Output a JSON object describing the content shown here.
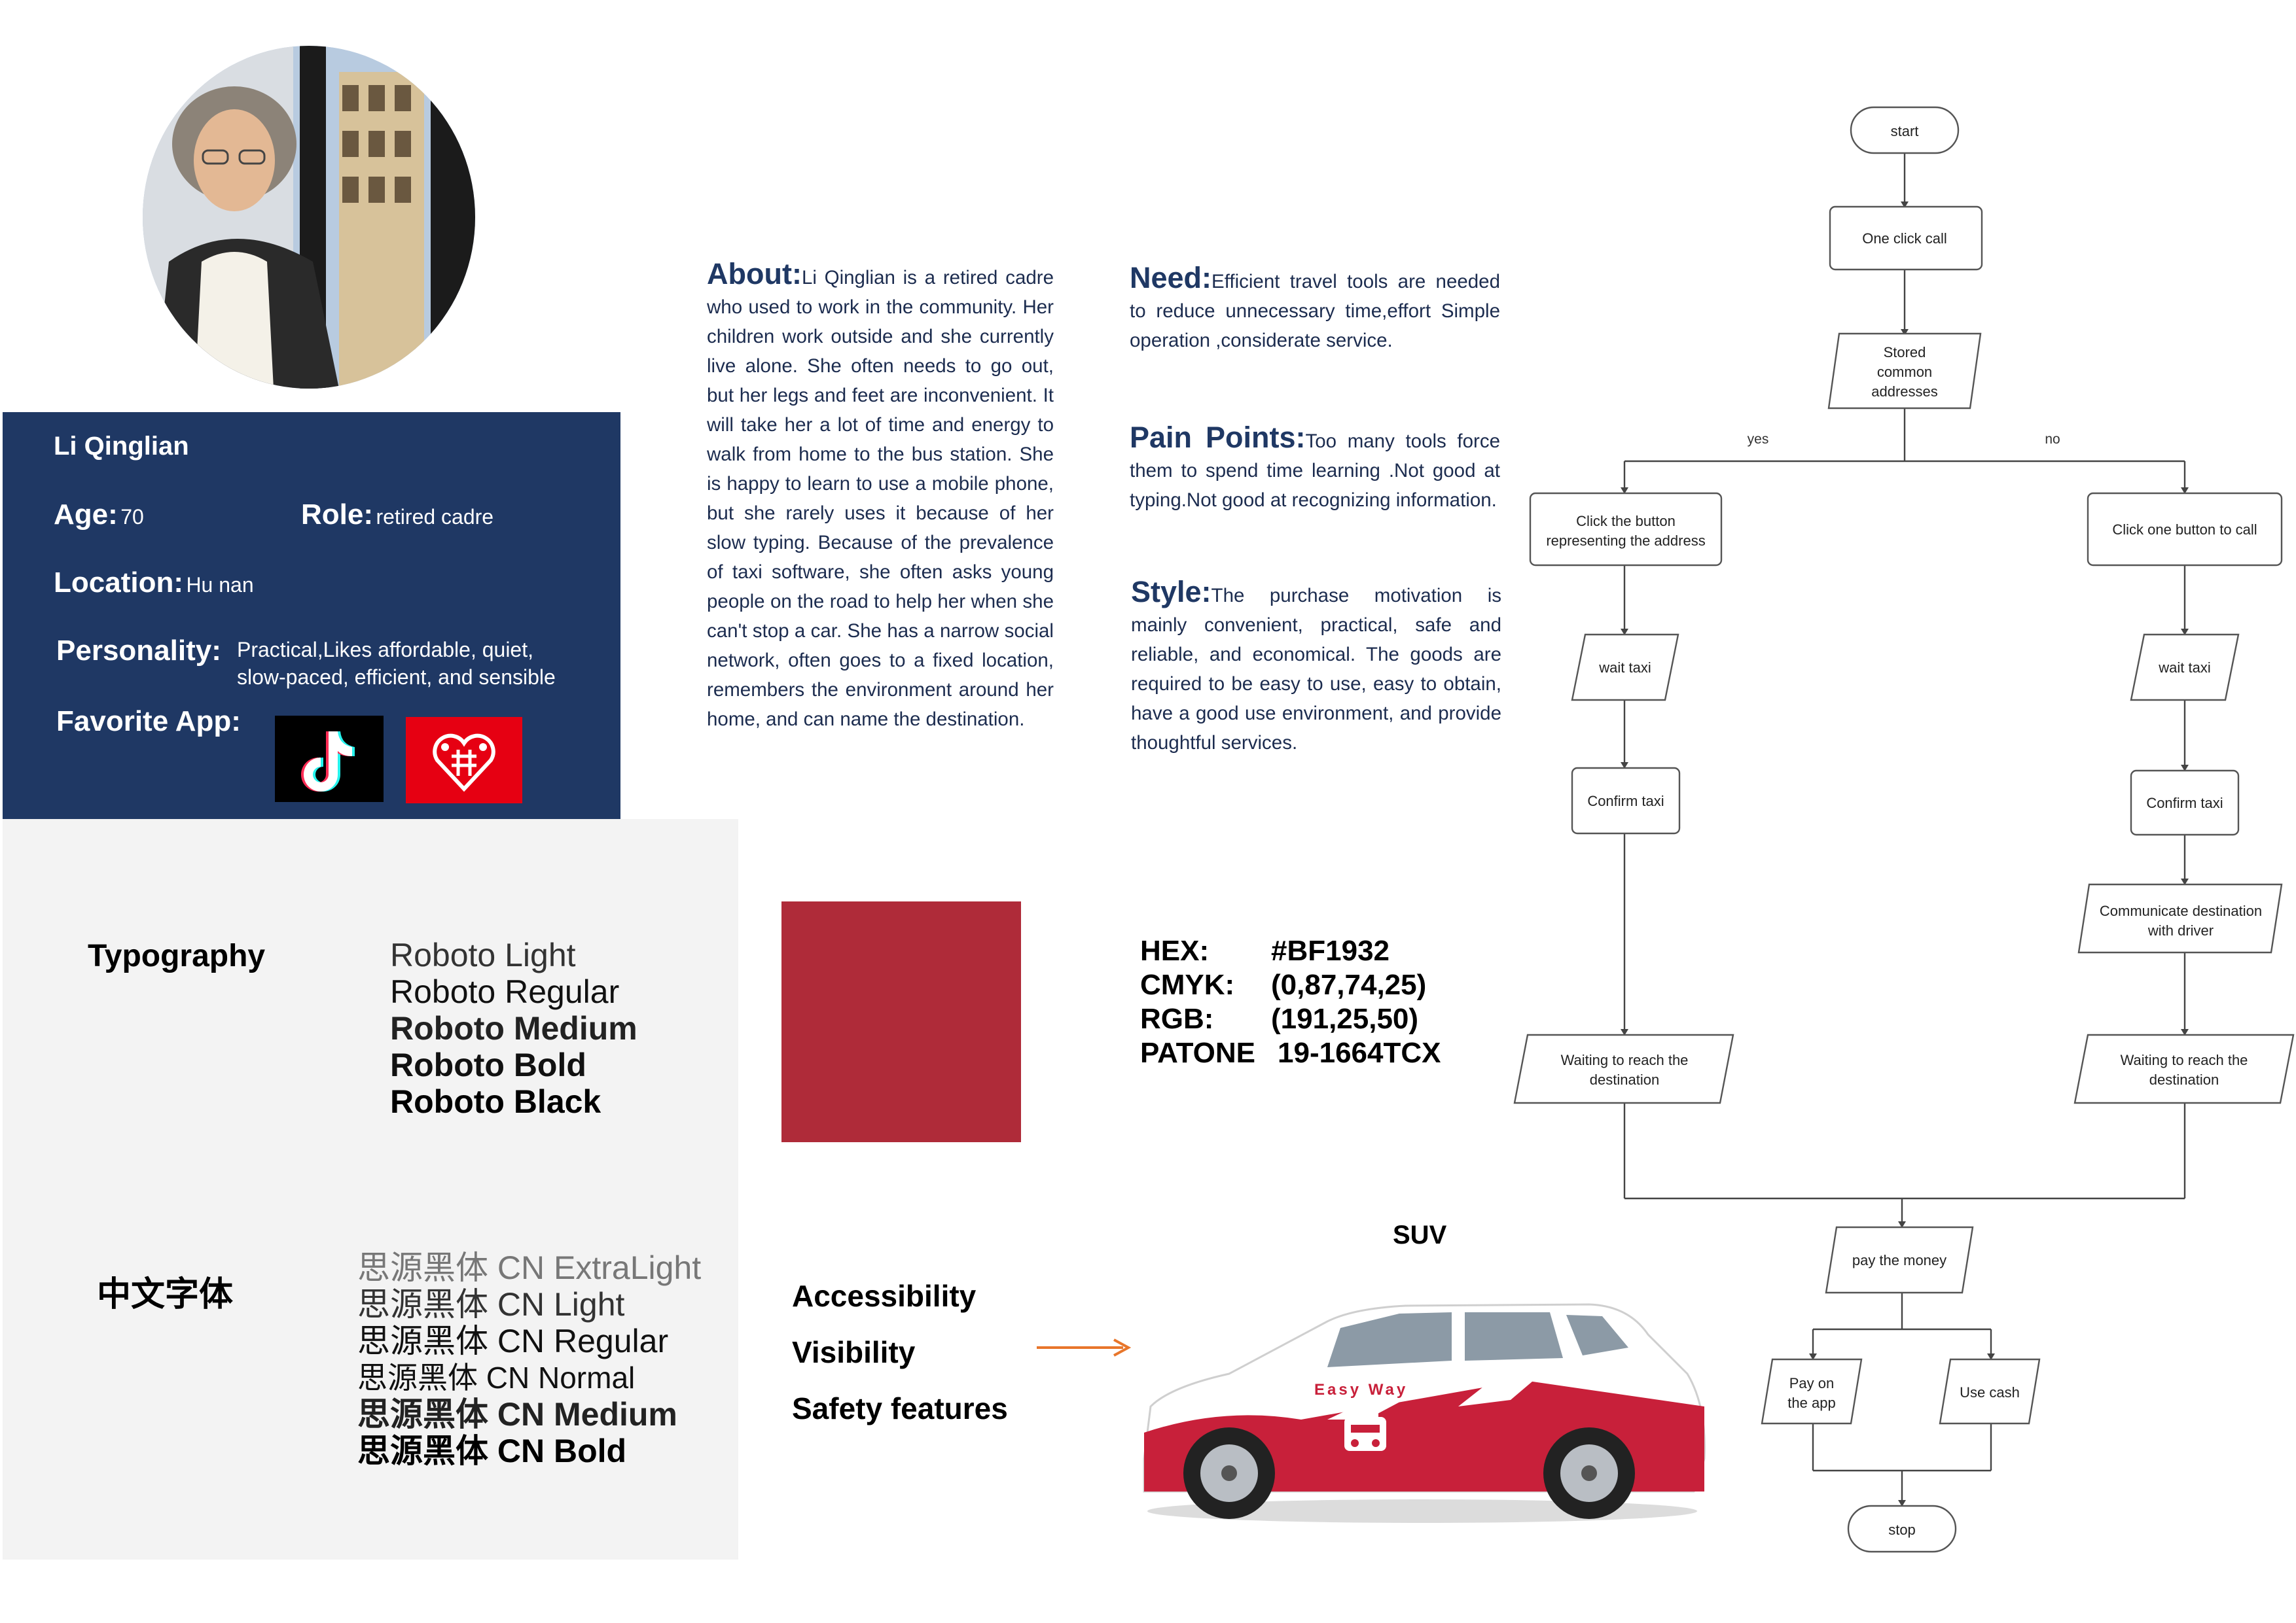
{
  "persona": {
    "name": "Li Qinglian",
    "age_label": "Age:",
    "age_value": "70",
    "role_label": "Role:",
    "role_value": "retired cadre",
    "location_label": "Location:",
    "location_value": "Hu nan",
    "personality_label": "Personality:",
    "personality_line1": "Practical,Likes affordable, quiet,",
    "personality_line2": "slow-paced, efficient, and sensible",
    "favorite_app_label": "Favorite App:"
  },
  "about": {
    "label": "About:",
    "text": "Li Qinglian is a retired cadre who used to work in the community. Her children work outside and she currently live alone. She often needs to go out, but her legs and feet are inconvenient. It will take her a lot of time and energy to walk from home to the bus station. She is happy to learn to use a mobile phone, but she rarely uses it because of her slow typing. Because of the prevalence of taxi software, she often asks young people on the road to help her when she can't stop a car. She has a narrow social network, often goes to a fixed location, remembers the environment around her home, and can name the destination."
  },
  "need": {
    "label": "Need:",
    "text": "Efficient travel tools are needed to reduce unnecessary time,effort Simple operation ,considerate service."
  },
  "pain_points": {
    "label": "Pain Points:",
    "text": "Too many tools force them to spend time learning .Not good at typing.Not good at recognizing information."
  },
  "style": {
    "label": "Style:",
    "text": "The purchase motivation is mainly convenient, practical, safe and reliable, and economical. The goods are required to be easy to use, easy to obtain, have a good use environment, and provide thoughtful services."
  },
  "typography": {
    "title": "Typography",
    "fonts": [
      "Roboto Light",
      "Roboto Regular",
      "Roboto Medium",
      "Roboto Bold",
      "Roboto Black"
    ],
    "cn_title": "中文字体",
    "cn_fonts": [
      "思源黑体 CN ExtraLight",
      "思源黑体 CN Light",
      "思源黑体 CN Regular",
      "思源黑体 CN Normal",
      "思源黑体 CN Medium",
      "思源黑体 CN Bold"
    ]
  },
  "color": {
    "swatch_hex": "#af2b39",
    "rows": [
      {
        "key": "HEX:",
        "value": "#BF1932"
      },
      {
        "key": "CMYK:",
        "value": "(0,87,74,25)"
      },
      {
        "key": "RGB:",
        "value": "(191,25,50)"
      },
      {
        "key": "PATONE",
        "value": "19-1664TCX"
      }
    ]
  },
  "accessibility": {
    "items": [
      "Accessibility",
      "Visibility",
      "Safety features"
    ]
  },
  "vehicle": {
    "title": "SUV",
    "brand": "Easy Way"
  },
  "flowchart": {
    "start": "start",
    "one_click": "One click call",
    "stored_1": "Stored",
    "stored_2": "common",
    "stored_3": "addresses",
    "yes": "yes",
    "no": "no",
    "click_btn_1": "Click the button",
    "click_btn_2": "representing the address",
    "click_one": "Click one button to call",
    "wait_left": "wait taxi",
    "wait_right": "wait taxi",
    "confirm_left": "Confirm taxi",
    "confirm_right": "Confirm taxi",
    "communicate_1": "Communicate destination",
    "communicate_2": "with driver",
    "waiting_left_1": "Waiting to reach the",
    "waiting_left_2": "destination",
    "waiting_right_1": "Waiting to reach the",
    "waiting_right_2": "destination",
    "pay_money": "pay the money",
    "pay_app_1": "Pay on",
    "pay_app_2": "the app",
    "use_cash": "Use cash",
    "stop": "stop"
  }
}
